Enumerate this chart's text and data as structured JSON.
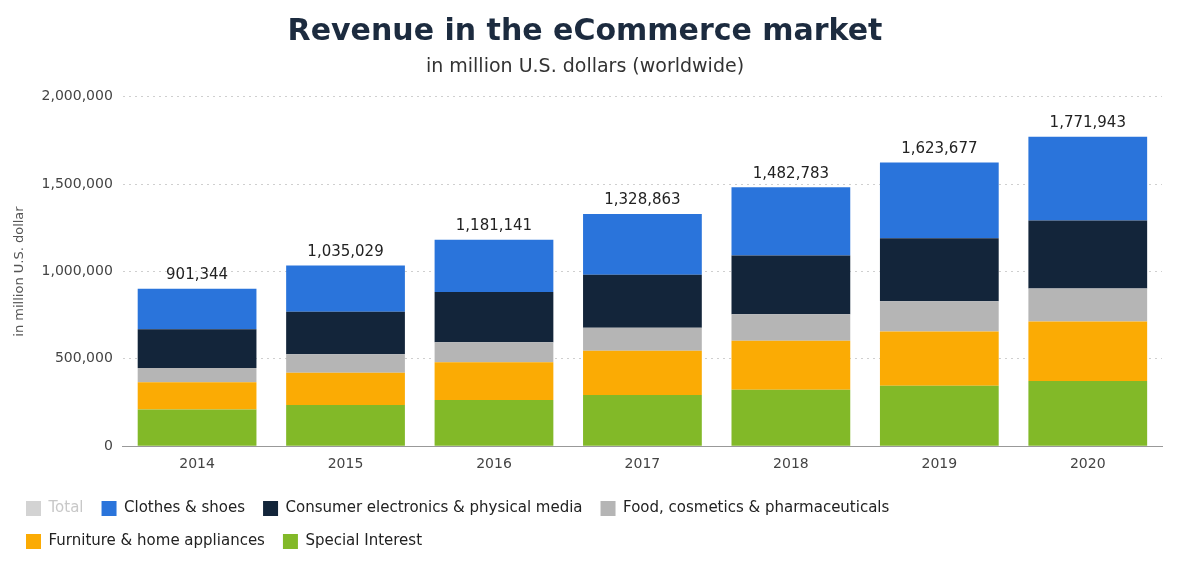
{
  "chart_data": {
    "type": "bar",
    "stacked": true,
    "title": "Revenue in the eCommerce market",
    "subtitle": "in million U.S. dollars (worldwide)",
    "ylabel": "in million U.S. dollar",
    "categories": [
      "2014",
      "2015",
      "2016",
      "2017",
      "2018",
      "2019",
      "2020"
    ],
    "series": [
      {
        "name": "Special Interest",
        "color": "#82b928",
        "values": [
          210000,
          236000,
          265000,
          293000,
          323000,
          346000,
          373000
        ]
      },
      {
        "name": "Furniture & home appliances",
        "color": "#fbab04",
        "values": [
          156000,
          185000,
          215000,
          253000,
          281000,
          311000,
          341000
        ]
      },
      {
        "name": "Food, cosmetics & pharmaceuticals",
        "color": "#b5b5b5",
        "values": [
          81000,
          105000,
          115000,
          132000,
          152000,
          173000,
          189000
        ]
      },
      {
        "name": "Consumer electronics & physical media",
        "color": "#13253a",
        "values": [
          222000,
          243000,
          288000,
          303000,
          336000,
          361000,
          389000
        ]
      },
      {
        "name": "Clothes & shoes",
        "color": "#2a74db",
        "values": [
          232344,
          266029,
          298141,
          347863,
          390783,
          432677,
          479943
        ]
      },
      {
        "name": "Total",
        "color": "#d3d3d3",
        "values": [
          null,
          null,
          null,
          null,
          null,
          null,
          null
        ]
      }
    ],
    "totals": [
      "901,344",
      "1,035,029",
      "1,181,141",
      "1,328,863",
      "1,482,783",
      "1,623,677",
      "1,771,943"
    ],
    "ylim": [
      0,
      2000000
    ],
    "yticks": [
      0,
      {
        "value": 500000,
        "label": "500,000"
      },
      {
        "value": 1000000,
        "label": "1,000,000"
      },
      {
        "value": 1500000,
        "label": "1,500,000"
      },
      {
        "value": 2000000,
        "label": "2,000,000"
      }
    ],
    "grid": "y",
    "legend": "bottom"
  }
}
